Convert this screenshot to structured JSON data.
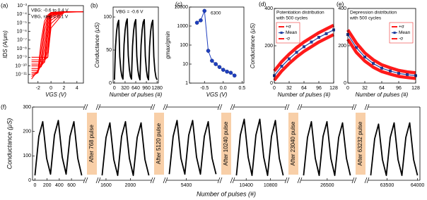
{
  "chart_data": [
    {
      "type": "line",
      "panel_label": "(a)",
      "log_y": true,
      "x_label": "VGS (V)",
      "y_label": "IDS (A/μm)",
      "annotation": [
        "VBG: -0.6 to 0.4 V",
        "VBG, step = 0.1 V"
      ],
      "x": [
        -3,
        -2,
        -1.5,
        -1,
        -0.5,
        0,
        2,
        5
      ],
      "xlim": [
        -3.5,
        5
      ],
      "xticks": [
        -2,
        0,
        2,
        4
      ],
      "ylim": [
        1e-12,
        0.001
      ],
      "yticks": [
        {
          "value": 0.001,
          "label": "10⁻³"
        },
        {
          "value": 0.0001,
          "label": "10⁻⁴"
        },
        {
          "value": 1e-05,
          "label": "10⁻⁵"
        },
        {
          "value": 1e-06,
          "label": "10⁻⁶"
        },
        {
          "value": 1e-07,
          "label": "10⁻⁷"
        },
        {
          "value": 1e-08,
          "label": "10⁻⁸"
        },
        {
          "value": 1e-09,
          "label": "10⁻⁹"
        },
        {
          "value": 1e-10,
          "label": "10⁻¹⁰"
        },
        {
          "value": 1e-11,
          "label": "10⁻¹¹"
        }
      ],
      "series": [
        {
          "color": "#ff0000",
          "values": [
            3e-12,
            3e-11,
            1e-07,
            1.6e-05,
            8e-05,
            0.00016,
            0.0002,
            0.0002
          ]
        },
        {
          "color": "#ff0000",
          "values": [
            6e-12,
            1.6e-11,
            1e-08,
            5e-06,
            5e-05,
            0.00016,
            0.0002,
            0.0002
          ]
        },
        {
          "color": "#ff0000",
          "values": [
            1e-11,
            1.6e-11,
            1e-09,
            1e-06,
            3e-05,
            0.00013,
            0.0002,
            0.0002
          ]
        },
        {
          "color": "#ff0000",
          "values": [
            1.6e-11,
            2e-11,
            1.6e-10,
            1e-07,
            1.6e-05,
            0.00013,
            0.0002,
            0.0002
          ]
        },
        {
          "color": "#ff0000",
          "values": [
            3e-11,
            3e-11,
            1e-10,
            1e-08,
            6e-06,
            0.0001,
            0.0002,
            0.0002
          ]
        },
        {
          "color": "#ff0000",
          "values": [
            5e-11,
            5e-11,
            8e-11,
            1e-09,
            1.6e-06,
            8e-05,
            0.0002,
            0.0002
          ]
        },
        {
          "color": "#ff0000",
          "values": [
            1e-10,
            1e-10,
            1e-10,
            3e-10,
            3e-07,
            6e-05,
            0.0002,
            0.0002
          ]
        },
        {
          "color": "#ff0000",
          "values": [
            1.6e-10,
            1.6e-10,
            1.6e-10,
            2.5e-10,
            3e-08,
            4e-05,
            0.0002,
            0.0002
          ]
        },
        {
          "color": "#ff0000",
          "values": [
            3e-10,
            3e-10,
            3e-10,
            3e-10,
            5e-09,
            2e-05,
            0.0002,
            0.0002
          ]
        },
        {
          "color": "#ff0000",
          "values": [
            5e-10,
            5e-10,
            5e-10,
            5e-10,
            1e-09,
            8e-06,
            0.0002,
            0.0002
          ]
        },
        {
          "color": "#ff0000",
          "values": [
            1e-09,
            1e-09,
            1e-09,
            1e-09,
            1e-09,
            2.5e-06,
            0.00016,
            0.0002
          ]
        }
      ]
    },
    {
      "type": "line",
      "panel_label": "(b)",
      "annotation": [
        "VBG = -0.6 V"
      ],
      "x_label": "Number of pulses (#)",
      "y_label": "Conductance (μS)",
      "color": "#000000",
      "x": [
        0,
        32,
        64,
        96,
        128,
        160,
        192,
        224,
        256,
        288,
        320,
        352,
        384,
        416,
        448,
        480,
        512,
        544,
        576,
        608,
        640,
        672,
        704,
        736,
        768,
        800,
        832,
        864,
        896,
        928,
        960,
        992,
        1024,
        1056,
        1088,
        1120,
        1152,
        1184,
        1216,
        1248,
        1280
      ],
      "values": [
        5,
        55,
        78,
        90,
        95,
        40,
        20,
        10,
        6,
        58,
        80,
        92,
        97,
        42,
        21,
        10,
        6,
        56,
        79,
        91,
        96,
        41,
        20,
        10,
        5,
        57,
        80,
        92,
        96,
        41,
        20,
        9,
        5,
        55,
        78,
        90,
        95,
        40,
        19,
        9,
        5
      ],
      "xlim": [
        -40,
        1320
      ],
      "xticks": [
        0,
        320,
        640,
        960,
        1280
      ],
      "ylim": [
        0,
        115
      ],
      "yticks": [
        0,
        50,
        100
      ]
    },
    {
      "type": "line",
      "panel_label": "(c)",
      "log_y": true,
      "annotation": [
        "6300"
      ],
      "x_label": "VGS (V)",
      "y_label": "gmax/gmin",
      "color": "#1f3fbf",
      "markers": "circle",
      "x": [
        -0.7,
        -0.6,
        -0.5,
        -0.4,
        -0.3,
        -0.2,
        -0.1,
        0,
        0.1,
        0.2,
        0.3
      ],
      "values": [
        1500,
        2000,
        6300,
        50,
        15,
        10,
        7,
        5,
        4,
        3.5,
        2.5
      ],
      "xlim": [
        -0.9,
        0.55
      ],
      "xticks": [
        -0.5,
        {
          "value": 0,
          "label": "0.0"
        },
        0.5
      ],
      "ylim": [
        1,
        10000
      ],
      "yticks": [
        1,
        10,
        100,
        1000,
        10000
      ]
    },
    {
      "type": "line",
      "panel_label": "(d)",
      "annotation": [
        "Potentiation distribution",
        "with 500 cycles"
      ],
      "legend": "upper left",
      "x_label": "Number of pulses (#)",
      "y_label": "Conductance (μS)",
      "x": [
        0,
        16,
        32,
        48,
        64,
        80,
        96,
        112,
        128
      ],
      "xlim": [
        0,
        128
      ],
      "xticks": [
        0,
        32,
        64,
        96,
        128
      ],
      "ylim": [
        0,
        400
      ],
      "yticks": [
        0,
        200,
        400
      ],
      "series": [
        {
          "name": "+σ",
          "color": "#ff1a1a",
          "values": [
            65,
            115,
            155,
            190,
            220,
            245,
            270,
            290,
            310
          ]
        },
        {
          "name": "Mean",
          "color": "#1f3f9f",
          "marker": "square",
          "values": [
            40,
            90,
            130,
            165,
            195,
            220,
            245,
            265,
            285
          ]
        },
        {
          "name": "-σ",
          "color": "#ff1a1a",
          "values": [
            15,
            65,
            105,
            140,
            170,
            195,
            220,
            240,
            260
          ]
        }
      ]
    },
    {
      "type": "line",
      "panel_label": "(e)",
      "annotation": [
        "Depression distribution",
        "with 500 cycles"
      ],
      "legend": "upper right",
      "x_label": "Number of pulses (#)",
      "x": [
        0,
        16,
        32,
        48,
        64,
        80,
        96,
        112,
        128
      ],
      "xlim": [
        0,
        128
      ],
      "xticks": [
        0,
        32,
        64,
        96,
        128
      ],
      "ylim": [
        0,
        400
      ],
      "yticks": [
        0,
        200,
        400
      ],
      "series": [
        {
          "name": "+σ",
          "color": "#ff1a1a",
          "values": [
            285,
            215,
            162,
            125,
            98,
            82,
            68,
            60,
            55
          ]
        },
        {
          "name": "Mean",
          "color": "#1f3f9f",
          "marker": "square",
          "values": [
            260,
            190,
            140,
            105,
            80,
            65,
            52,
            45,
            40
          ]
        },
        {
          "name": "-σ",
          "color": "#ff1a1a",
          "values": [
            235,
            165,
            118,
            85,
            62,
            48,
            36,
            30,
            25
          ]
        }
      ]
    },
    {
      "type": "line",
      "panel_label": "(f)",
      "x_label": "Number of pulses (#)",
      "y_label": "Conductance (μS)",
      "color": "#000000",
      "ylim": [
        0,
        300
      ],
      "yticks": [
        0,
        100,
        200,
        300
      ],
      "break_labels": [
        "After 768 pulse",
        "After 5120 pulse",
        "After 10240 pulse",
        "After 23040 pulse",
        "After 63232 pulse"
      ],
      "segments": [
        {
          "xlim": [
            -40,
            808
          ],
          "xticks": [
            0,
            200,
            400,
            600
          ],
          "x": [
            0,
            64,
            128,
            192,
            256,
            320,
            384,
            448,
            512,
            576,
            640,
            704,
            768
          ],
          "values": [
            20,
            180,
            240,
            90,
            25,
            185,
            245,
            95,
            25,
            180,
            240,
            90,
            20
          ]
        },
        {
          "xlim": [
            1496,
            2344
          ],
          "xticks": [
            1600,
            2000
          ],
          "x": [
            1536,
            1600,
            1664,
            1728,
            1792,
            1856,
            1920,
            1984,
            2048,
            2112,
            2176,
            2240,
            2304
          ],
          "values": [
            20,
            175,
            235,
            85,
            20,
            180,
            240,
            90,
            20,
            175,
            235,
            85,
            20
          ]
        },
        {
          "xlim": [
            5080,
            5928
          ],
          "xticks": [
            5400
          ],
          "x": [
            5120,
            5184,
            5248,
            5312,
            5376,
            5440,
            5504,
            5568,
            5632,
            5696,
            5760,
            5824,
            5888
          ],
          "values": [
            25,
            180,
            245,
            90,
            25,
            185,
            245,
            95,
            25,
            180,
            240,
            90,
            25
          ]
        },
        {
          "xlim": [
            10200,
            11048
          ],
          "xticks": [
            10400,
            10800
          ],
          "x": [
            10240,
            10304,
            10368,
            10432,
            10496,
            10560,
            10624,
            10688,
            10752,
            10816,
            10880,
            10944,
            11008
          ],
          "values": [
            20,
            185,
            250,
            95,
            20,
            185,
            250,
            95,
            20,
            180,
            245,
            90,
            20
          ]
        },
        {
          "xlim": [
            26072,
            26920
          ],
          "xticks": [
            26500
          ],
          "x": [
            26112,
            26176,
            26240,
            26304,
            26368,
            26432,
            26496,
            26560,
            26624,
            26688,
            26752,
            26816,
            26880
          ],
          "values": [
            20,
            175,
            240,
            90,
            20,
            180,
            240,
            90,
            20,
            175,
            235,
            90,
            20
          ]
        },
        {
          "xlim": [
            63192,
            64040
          ],
          "xticks": [
            63500,
            64000
          ],
          "x": [
            63232,
            63296,
            63360,
            63424,
            63488,
            63552,
            63616,
            63680,
            63744,
            63808,
            63872,
            63936,
            64000
          ],
          "values": [
            20,
            170,
            230,
            85,
            20,
            175,
            235,
            85,
            20,
            175,
            235,
            85,
            20
          ]
        }
      ]
    }
  ]
}
